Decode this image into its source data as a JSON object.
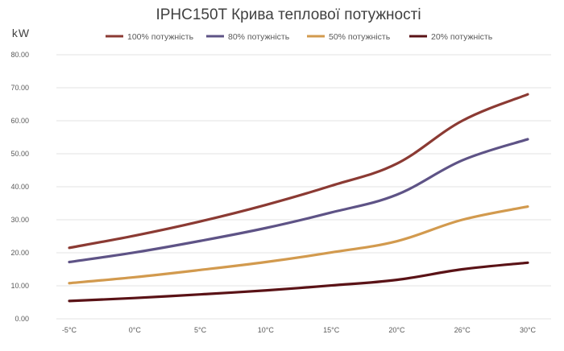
{
  "chart_data": {
    "type": "line",
    "title": "IPHC150T Крива теплової потужності",
    "ylabel": "kW",
    "xlabel": "",
    "categories": [
      "-5°C",
      "0°C",
      "5°C",
      "10°C",
      "15°C",
      "20°C",
      "26°C",
      "30°C"
    ],
    "yticks": [
      "0.00",
      "10.00",
      "20.00",
      "30.00",
      "40.00",
      "50.00",
      "60.00",
      "70.00",
      "80.00"
    ],
    "ylim": [
      0,
      80
    ],
    "grid": true,
    "legend_position": "top",
    "series": [
      {
        "name": "100% потужність",
        "color": "#8b3a33",
        "values": [
          21.5,
          25.2,
          29.5,
          34.5,
          40.3,
          47.0,
          60.0,
          68.0
        ]
      },
      {
        "name": "80% потужність",
        "color": "#5e5386",
        "values": [
          17.2,
          20.1,
          23.6,
          27.5,
          32.2,
          37.6,
          48.0,
          54.4
        ]
      },
      {
        "name": "50% потужність",
        "color": "#d29a4e",
        "values": [
          10.8,
          12.6,
          14.8,
          17.2,
          20.1,
          23.5,
          30.0,
          34.0
        ]
      },
      {
        "name": "20% потужність",
        "color": "#5a1216",
        "values": [
          5.4,
          6.3,
          7.4,
          8.6,
          10.1,
          11.8,
          15.0,
          17.0
        ]
      }
    ]
  }
}
